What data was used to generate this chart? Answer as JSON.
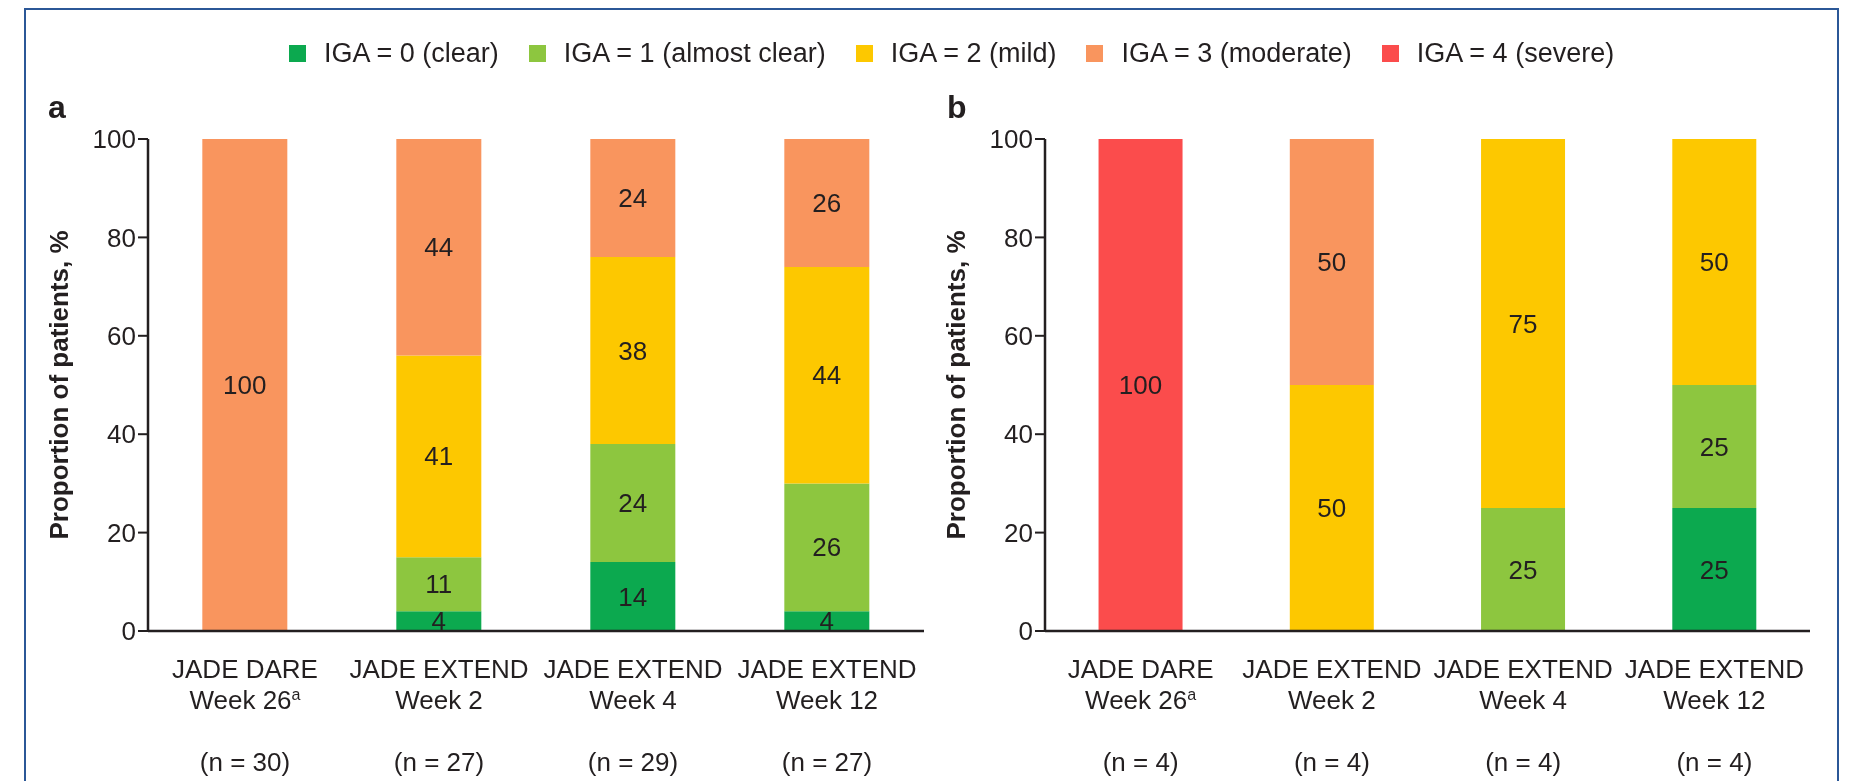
{
  "chart_data": [
    {
      "type": "bar",
      "title": "a",
      "ylabel": "Proportion of patients, %",
      "categories": [
        "JADE DARE\nWeek 26$^{a}$\n\n(n = 30)",
        "JADE EXTEND\nWeek 2\n\n(n = 27)",
        "JADE EXTEND\nWeek 4\n\n(n = 29)",
        "JADE EXTEND\nWeek 12\n\n(n = 27)"
      ],
      "series": [
        {
          "name": "IGA = 0 (clear)",
          "color": "#0ca94f",
          "values": [
            null,
            4,
            14,
            4
          ]
        },
        {
          "name": "IGA = 1 (almost clear)",
          "color": "#8dc63f",
          "values": [
            null,
            11,
            24,
            26
          ]
        },
        {
          "name": "IGA = 2 (mild)",
          "color": "#fdc800",
          "values": [
            null,
            41,
            38,
            44
          ]
        },
        {
          "name": "IGA = 3 (moderate)",
          "color": "#f9955e",
          "values": [
            100,
            44,
            24,
            26
          ]
        },
        {
          "name": "IGA = 4 (severe)",
          "color": "#fb4c4c",
          "values": [
            null,
            null,
            null,
            null
          ]
        }
      ],
      "stacked": true,
      "data_labels": true,
      "ylim": [
        0,
        100
      ],
      "yticks": [
        0,
        20,
        40,
        60,
        80,
        100
      ],
      "legend": "top"
    },
    {
      "type": "bar",
      "title": "b",
      "ylabel": "Proportion of patients, %",
      "categories": [
        "JADE DARE\nWeek 26$^{a}$\n\n(n = 4)",
        "JADE EXTEND\nWeek 2\n\n(n = 4)",
        "JADE EXTEND\nWeek 4\n\n(n = 4)",
        "JADE EXTEND\nWeek 12\n\n(n = 4)"
      ],
      "series": [
        {
          "color": "#0ca94f",
          "values": [
            null,
            null,
            null,
            25
          ]
        },
        {
          "color": "#8dc63f",
          "values": [
            null,
            null,
            25,
            25
          ]
        },
        {
          "color": "#fdc800",
          "values": [
            null,
            50,
            75,
            50
          ]
        },
        {
          "color": "#f9955e",
          "values": [
            null,
            50,
            null,
            null
          ]
        },
        {
          "color": "#fb4c4c",
          "values": [
            100,
            null,
            null,
            null
          ]
        }
      ],
      "stacked": true,
      "data_labels": true,
      "ylim": [
        0,
        100
      ],
      "yticks": [
        0,
        20,
        40,
        60,
        80,
        100
      ]
    }
  ]
}
